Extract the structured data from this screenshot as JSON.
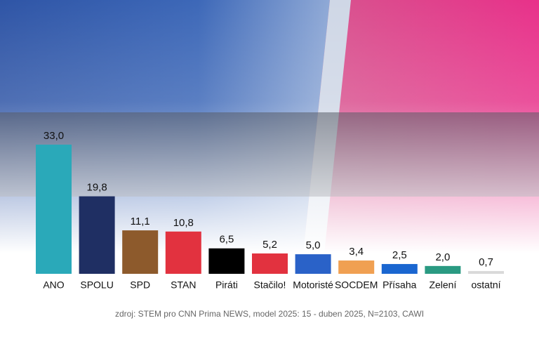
{
  "chart_data": {
    "type": "bar",
    "categories": [
      "ANO",
      "SPOLU",
      "SPD",
      "STAN",
      "Piráti",
      "Stačilo!",
      "Motoristé",
      "SOCDEM",
      "Přísaha",
      "Zelení",
      "ostatní"
    ],
    "values": [
      33.0,
      19.8,
      11.1,
      10.8,
      6.5,
      5.2,
      5.0,
      3.4,
      2.5,
      2.0,
      0.7
    ],
    "value_labels": [
      "33,0",
      "19,8",
      "11,1",
      "10,8",
      "6,5",
      "5,2",
      "5,0",
      "3,4",
      "2,5",
      "2,0",
      "0,7"
    ],
    "colors": [
      "#2aa9b9",
      "#1f2f63",
      "#8d5a2c",
      "#e2323f",
      "#000000",
      "#e2323f",
      "#2a62c8",
      "#f0a052",
      "#1a66d0",
      "#2a9a82",
      "#d9d9d9"
    ],
    "source": "zdroj: STEM pro CNN Prima NEWS, model 2025: 15 - duben 2025, N=2103, CAWI"
  }
}
